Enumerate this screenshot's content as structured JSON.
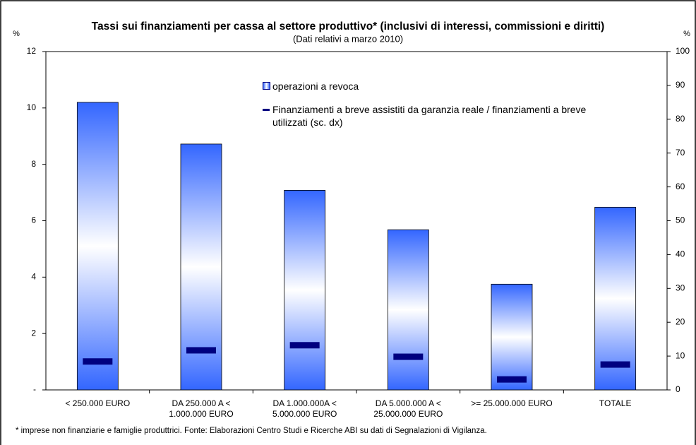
{
  "chart_data": {
    "type": "bar",
    "title": "Tassi sui finanziamenti per cassa al settore produttivo* (inclusivi di interessi, commissioni e diritti)",
    "subtitle": "(Dati relativi a marzo 2010)",
    "y_unit": "%",
    "y2_unit": "%",
    "categories": [
      [
        "< 250.000 EURO"
      ],
      [
        "DA 250.000 A <",
        "1.000.000 EURO"
      ],
      [
        "DA 1.000.000A <",
        "5.000.000 EURO"
      ],
      [
        "DA 5.000.000 A <",
        "25.000.000 EURO"
      ],
      [
        ">= 25.000.000 EURO"
      ],
      [
        "TOTALE"
      ]
    ],
    "series": [
      {
        "name": "operazioni a revoca",
        "color": "#3366ff",
        "values": [
          10.2,
          8.72,
          7.08,
          5.68,
          3.75,
          6.48
        ]
      },
      {
        "name": "Finanziamenti a breve assistiti da garanzia reale / finanziamenti a breve utilizzati (sc. dx)",
        "color": "#000080",
        "axis": "y2",
        "values": [
          8.4,
          11.7,
          13.2,
          9.8,
          3.1,
          7.5
        ]
      }
    ],
    "ylim": [
      0,
      12
    ],
    "yticks": [
      {
        "value": 0,
        "label": "-"
      },
      2,
      4,
      6,
      8,
      10,
      12
    ],
    "y2lim": [
      0,
      100
    ],
    "y2ticks": [
      0,
      10,
      20,
      30,
      40,
      50,
      60,
      70,
      80,
      90,
      100
    ],
    "footnote": "* imprese non finanziarie e famiglie produttrici. Fonte: Elaborazioni Centro Studi e Ricerche ABI su dati di Segnalazioni di Vigilanza."
  }
}
